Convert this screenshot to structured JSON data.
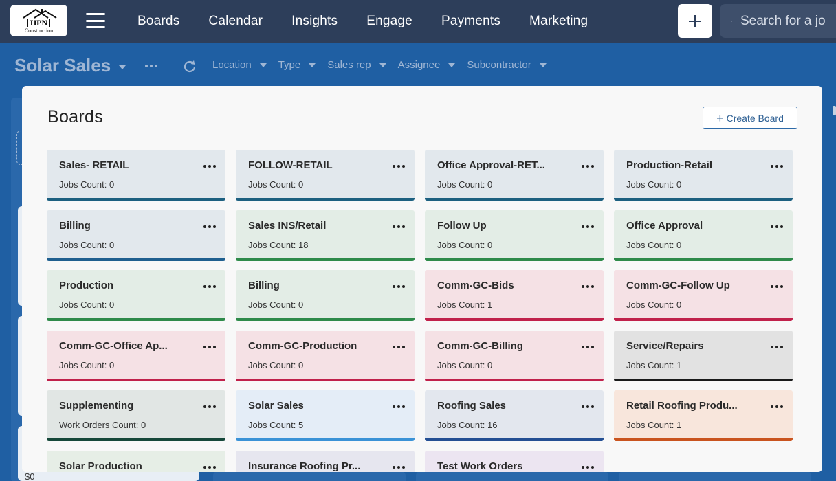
{
  "logo": {
    "brand": "HPN",
    "brand_sub": "Construction"
  },
  "nav": {
    "links": [
      "Boards",
      "Calendar",
      "Insights",
      "Engage",
      "Payments",
      "Marketing"
    ]
  },
  "search": {
    "placeholder": "Search for a jo"
  },
  "subheader": {
    "board_name": "Solar Sales",
    "filters": [
      "Location",
      "Type",
      "Sales rep",
      "Assignee",
      "Subcontractor"
    ]
  },
  "background": {
    "peek_value": "$0"
  },
  "modal": {
    "title": "Boards",
    "create_label": "Create Board",
    "cards": [
      {
        "name": "Sales- RETAIL",
        "count": "Jobs Count: 0",
        "style": "c-blue"
      },
      {
        "name": "FOLLOW-RETAIL",
        "count": "Jobs Count: 0",
        "style": "c-blue"
      },
      {
        "name": "Office Approval-RET...",
        "count": "Jobs Count: 0",
        "style": "c-blue"
      },
      {
        "name": "Production-Retail",
        "count": "Jobs Count: 0",
        "style": "c-blue"
      },
      {
        "name": "Billing",
        "count": "Jobs Count: 0",
        "style": "c-blue2"
      },
      {
        "name": "Sales INS/Retail",
        "count": "Jobs Count: 18",
        "style": "c-green"
      },
      {
        "name": "Follow Up",
        "count": "Jobs Count: 0",
        "style": "c-green"
      },
      {
        "name": "Office Approval",
        "count": "Jobs Count: 0",
        "style": "c-green"
      },
      {
        "name": "Production",
        "count": "Jobs Count: 0",
        "style": "c-green"
      },
      {
        "name": "Billing",
        "count": "Jobs Count: 0",
        "style": "c-green"
      },
      {
        "name": "Comm-GC-Bids",
        "count": "Jobs Count: 1",
        "style": "c-red"
      },
      {
        "name": "Comm-GC-Follow Up",
        "count": "Jobs Count: 0",
        "style": "c-red"
      },
      {
        "name": "Comm-GC-Office Ap...",
        "count": "Jobs Count: 0",
        "style": "c-red"
      },
      {
        "name": "Comm-GC-Production",
        "count": "Jobs Count: 0",
        "style": "c-red"
      },
      {
        "name": "Comm-GC-Billing",
        "count": "Jobs Count: 0",
        "style": "c-red"
      },
      {
        "name": "Service/Repairs",
        "count": "Jobs Count: 1",
        "style": "c-gray"
      },
      {
        "name": "Supplementing",
        "count": "Work Orders Count: 0",
        "style": "c-dkgreen"
      },
      {
        "name": "Solar Sales",
        "count": "Jobs Count: 5",
        "style": "c-lblue"
      },
      {
        "name": "Roofing Sales",
        "count": "Jobs Count: 16",
        "style": "c-navy"
      },
      {
        "name": "Retail Roofing Produ...",
        "count": "Jobs Count: 1",
        "style": "c-orange"
      },
      {
        "name": "Solar Production",
        "count": "",
        "style": "c-mgreen"
      },
      {
        "name": "Insurance Roofing Pr...",
        "count": "",
        "style": "c-lav"
      },
      {
        "name": "Test Work Orders",
        "count": "",
        "style": "c-purple"
      }
    ]
  }
}
